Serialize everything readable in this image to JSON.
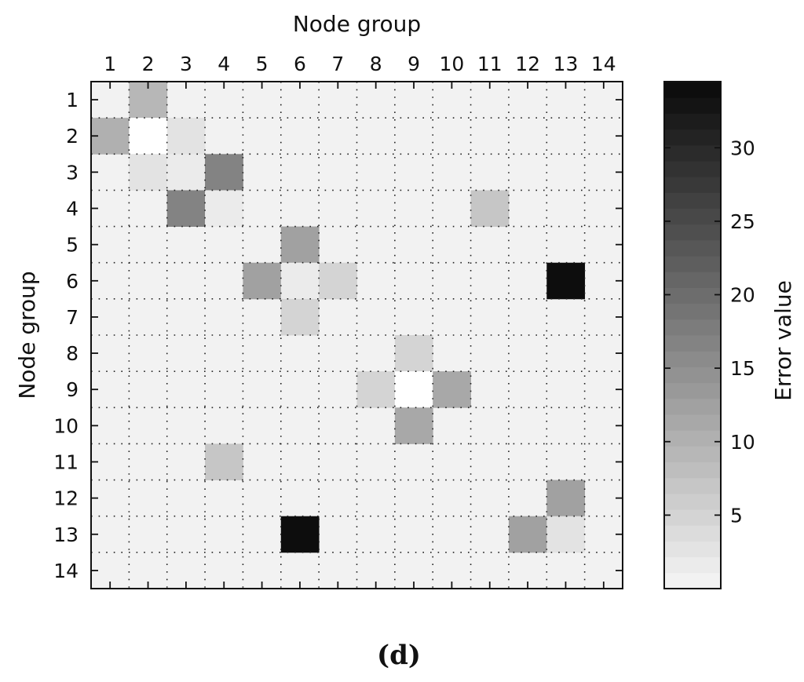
{
  "caption": "(d)",
  "chart_data": {
    "type": "heatmap",
    "xlabel": "Node group",
    "ylabel": "Node group",
    "x_categories": [
      "1",
      "2",
      "3",
      "4",
      "5",
      "6",
      "7",
      "8",
      "9",
      "10",
      "11",
      "12",
      "13",
      "14"
    ],
    "y_categories": [
      "1",
      "2",
      "3",
      "4",
      "5",
      "6",
      "7",
      "8",
      "9",
      "10",
      "11",
      "12",
      "13",
      "14"
    ],
    "x_axis_position": "top",
    "grid": true,
    "grid_style": "dotted",
    "background_value": 1,
    "cells": [
      {
        "row": 1,
        "col": 2,
        "value": 9
      },
      {
        "row": 2,
        "col": 1,
        "value": 10
      },
      {
        "row": 2,
        "col": 2,
        "value": 0
      },
      {
        "row": 2,
        "col": 3,
        "value": 3
      },
      {
        "row": 3,
        "col": 2,
        "value": 3
      },
      {
        "row": 3,
        "col": 3,
        "value": 2
      },
      {
        "row": 3,
        "col": 4,
        "value": 17
      },
      {
        "row": 4,
        "col": 3,
        "value": 17
      },
      {
        "row": 4,
        "col": 4,
        "value": 2
      },
      {
        "row": 4,
        "col": 11,
        "value": 7
      },
      {
        "row": 5,
        "col": 6,
        "value": 12
      },
      {
        "row": 6,
        "col": 5,
        "value": 12
      },
      {
        "row": 6,
        "col": 6,
        "value": 2
      },
      {
        "row": 6,
        "col": 7,
        "value": 5
      },
      {
        "row": 6,
        "col": 13,
        "value": 34
      },
      {
        "row": 7,
        "col": 6,
        "value": 5
      },
      {
        "row": 8,
        "col": 9,
        "value": 5
      },
      {
        "row": 9,
        "col": 8,
        "value": 5
      },
      {
        "row": 9,
        "col": 9,
        "value": 0
      },
      {
        "row": 9,
        "col": 10,
        "value": 11
      },
      {
        "row": 10,
        "col": 9,
        "value": 11
      },
      {
        "row": 11,
        "col": 4,
        "value": 7
      },
      {
        "row": 12,
        "col": 13,
        "value": 12
      },
      {
        "row": 13,
        "col": 6,
        "value": 34
      },
      {
        "row": 13,
        "col": 12,
        "value": 12
      },
      {
        "row": 13,
        "col": 13,
        "value": 3
      }
    ],
    "colorbar": {
      "label": "Error value",
      "range": [
        0,
        34.5
      ],
      "ticks": [
        5,
        10,
        15,
        20,
        25,
        30
      ],
      "levels": 32,
      "colormap": "gray-reversed",
      "low_color": "#f2f2f2",
      "high_color": "#0d0d0d",
      "position": "right"
    }
  }
}
